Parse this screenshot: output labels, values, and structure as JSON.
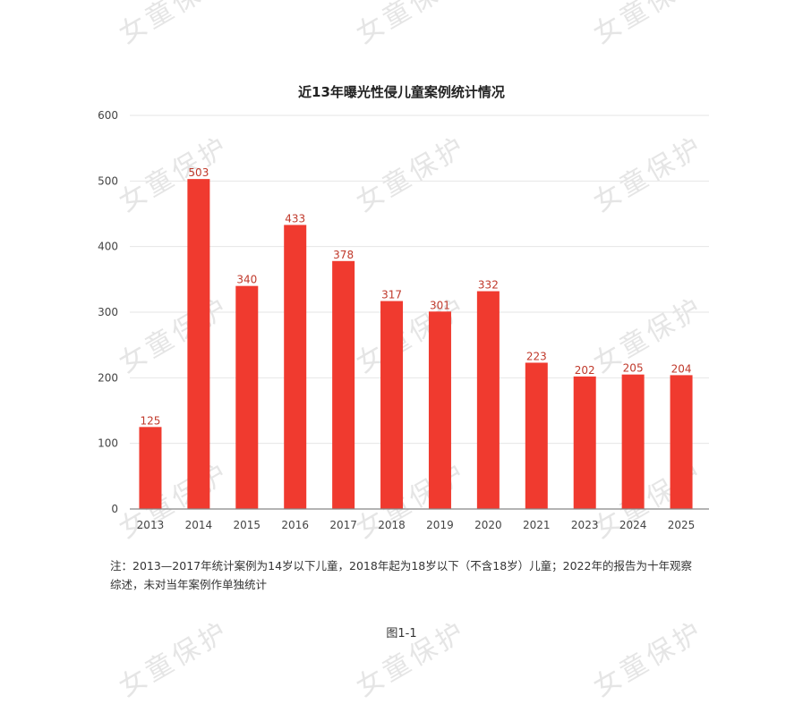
{
  "watermark_text": "女童保护",
  "note": "注：2013—2017年统计案例为14岁以下儿童，2018年起为18岁以下（不含18岁）儿童；2022年的报告为十年观察综述，未对当年案例作单独统计",
  "caption": "图1-1",
  "chart_data": {
    "type": "bar",
    "title": "近13年曝光性侵儿童案例统计情况",
    "xlabel": "",
    "ylabel": "",
    "categories": [
      "2013",
      "2014",
      "2015",
      "2016",
      "2017",
      "2018",
      "2019",
      "2020",
      "2021",
      "2023",
      "2024",
      "2025"
    ],
    "values": [
      125,
      503,
      340,
      433,
      378,
      317,
      301,
      332,
      223,
      202,
      205,
      204
    ],
    "ylim": [
      0,
      600
    ],
    "yticks": [
      0,
      100,
      200,
      300,
      400,
      500,
      600
    ],
    "grid": true,
    "bar_color": "#f03a2f",
    "label_color": "#c0392b"
  }
}
